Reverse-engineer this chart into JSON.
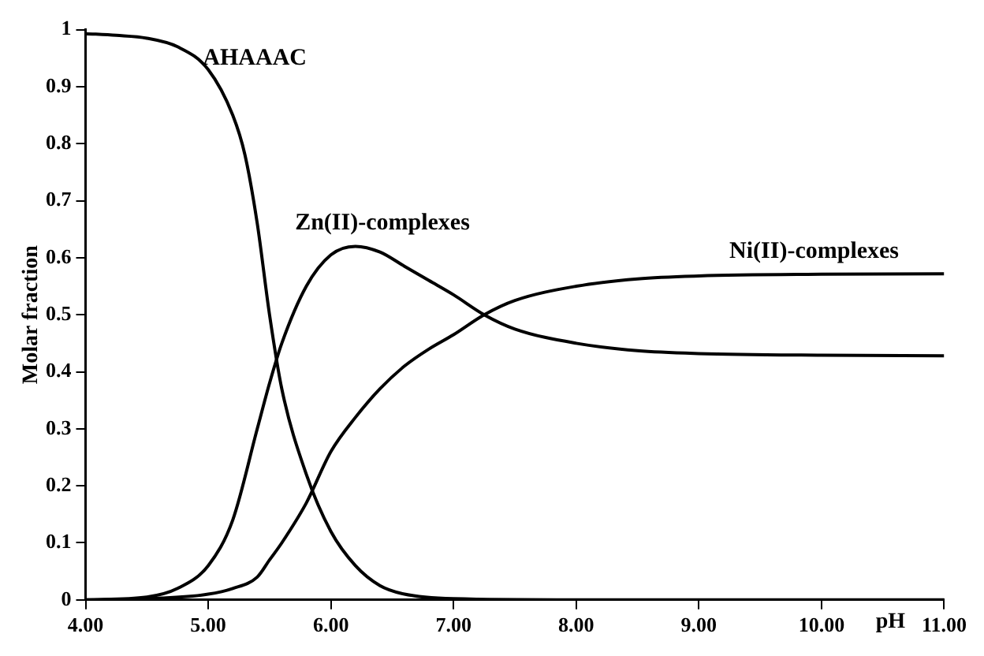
{
  "chart_data": {
    "type": "line",
    "xlabel": "pH",
    "ylabel": "Molar fraction",
    "xlim": [
      4,
      11
    ],
    "ylim": [
      0,
      1
    ],
    "xticks": [
      {
        "value": 4,
        "label": "4.00"
      },
      {
        "value": 5,
        "label": "5.00"
      },
      {
        "value": 6,
        "label": "6.00"
      },
      {
        "value": 7,
        "label": "7.00"
      },
      {
        "value": 8,
        "label": "8.00"
      },
      {
        "value": 9,
        "label": "9.00"
      },
      {
        "value": 10,
        "label": "10.00"
      },
      {
        "value": 11,
        "label": "11.00"
      }
    ],
    "yticks": [
      0,
      0.1,
      0.2,
      0.3,
      0.4,
      0.5,
      0.6,
      0.7,
      0.8,
      0.9,
      1
    ],
    "grid": false,
    "legend": false,
    "marker": "none",
    "line_style": "solid",
    "series": [
      {
        "name": "AHAAAC",
        "color": "#000000",
        "x": [
          4,
          4.25,
          4.5,
          4.75,
          5,
          5.2,
          5.3,
          5.4,
          5.5,
          5.6,
          5.8,
          6,
          6.2,
          6.4,
          6.6,
          7,
          8,
          11
        ],
        "values": [
          0.993,
          0.99,
          0.985,
          0.97,
          0.93,
          0.85,
          0.78,
          0.66,
          0.5,
          0.37,
          0.22,
          0.12,
          0.06,
          0.025,
          0.01,
          0.002,
          0,
          0
        ]
      },
      {
        "name": "Zn(II)-complexes",
        "color": "#000000",
        "x": [
          4,
          4.5,
          4.75,
          5,
          5.2,
          5.4,
          5.5,
          5.6,
          5.8,
          6,
          6.2,
          6.4,
          6.6,
          6.8,
          7,
          7.25,
          7.5,
          8,
          8.5,
          9,
          10,
          11
        ],
        "values": [
          0,
          0.005,
          0.02,
          0.06,
          0.14,
          0.3,
          0.38,
          0.45,
          0.55,
          0.605,
          0.62,
          0.61,
          0.585,
          0.56,
          0.535,
          0.5,
          0.475,
          0.45,
          0.437,
          0.432,
          0.429,
          0.428
        ]
      },
      {
        "name": "Ni(II)-complexes",
        "color": "#000000",
        "x": [
          4,
          4.5,
          5,
          5.2,
          5.4,
          5.5,
          5.6,
          5.8,
          6,
          6.2,
          6.4,
          6.6,
          6.8,
          7,
          7.25,
          7.5,
          8,
          8.5,
          9,
          10,
          11
        ],
        "values": [
          0,
          0.002,
          0.01,
          0.02,
          0.04,
          0.07,
          0.1,
          0.17,
          0.26,
          0.32,
          0.37,
          0.41,
          0.44,
          0.465,
          0.5,
          0.525,
          0.55,
          0.563,
          0.568,
          0.571,
          0.572
        ]
      }
    ]
  }
}
